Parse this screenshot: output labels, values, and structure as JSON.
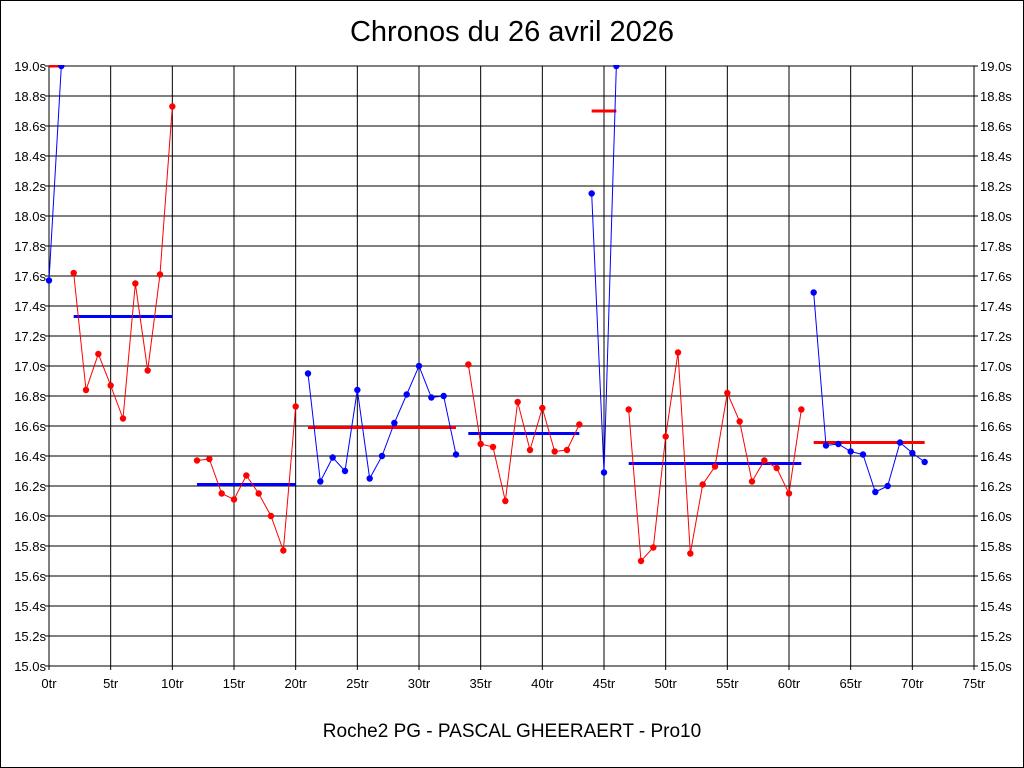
{
  "chart_data": {
    "type": "line",
    "title": "Chronos du 26 avril 2026",
    "caption": "Roche2 PG - PASCAL GHEERAERT - Pro10",
    "xlim": [
      0,
      75
    ],
    "ylim": [
      15.0,
      19.0
    ],
    "x_ticks": [
      0,
      5,
      10,
      15,
      20,
      25,
      30,
      35,
      40,
      45,
      50,
      55,
      60,
      65,
      70,
      75
    ],
    "x_tick_labels": [
      "0tr",
      "5tr",
      "10tr",
      "15tr",
      "20tr",
      "25tr",
      "30tr",
      "35tr",
      "40tr",
      "45tr",
      "50tr",
      "55tr",
      "60tr",
      "65tr",
      "70tr",
      "75tr"
    ],
    "y_ticks": [
      15.0,
      15.2,
      15.4,
      15.6,
      15.8,
      16.0,
      16.2,
      16.4,
      16.6,
      16.8,
      17.0,
      17.2,
      17.4,
      17.6,
      17.8,
      18.0,
      18.2,
      18.4,
      18.6,
      18.8,
      19.0
    ],
    "y_tick_labels": [
      "15.0s",
      "15.2s",
      "15.4s",
      "15.6s",
      "15.8s",
      "16.0s",
      "16.2s",
      "16.4s",
      "16.6s",
      "16.8s",
      "17.0s",
      "17.2s",
      "17.4s",
      "17.6s",
      "17.8s",
      "18.0s",
      "18.2s",
      "18.4s",
      "18.6s",
      "18.8s",
      "19.0s"
    ],
    "grid": true,
    "series": [
      {
        "color": "#0000ff",
        "points": [
          [
            0,
            17.57
          ],
          [
            1,
            19.0
          ]
        ]
      },
      {
        "color": "#ff0000",
        "points": [
          [
            2,
            17.62
          ],
          [
            3,
            16.84
          ],
          [
            4,
            17.08
          ],
          [
            5,
            16.87
          ],
          [
            6,
            16.65
          ],
          [
            7,
            17.55
          ],
          [
            8,
            16.97
          ],
          [
            9,
            17.61
          ],
          [
            10,
            18.73
          ]
        ]
      },
      {
        "color": "#ff0000",
        "points": [
          [
            12,
            16.37
          ],
          [
            13,
            16.38
          ],
          [
            14,
            16.15
          ],
          [
            15,
            16.11
          ],
          [
            16,
            16.27
          ],
          [
            17,
            16.15
          ],
          [
            18,
            16.0
          ],
          [
            19,
            15.77
          ],
          [
            20,
            16.73
          ]
        ]
      },
      {
        "color": "#0000ff",
        "points": [
          [
            21,
            16.95
          ],
          [
            22,
            16.23
          ],
          [
            23,
            16.39
          ],
          [
            24,
            16.3
          ],
          [
            25,
            16.84
          ],
          [
            26,
            16.25
          ],
          [
            27,
            16.4
          ],
          [
            28,
            16.62
          ],
          [
            29,
            16.81
          ],
          [
            30,
            17.0
          ],
          [
            31,
            16.79
          ],
          [
            32,
            16.8
          ],
          [
            33,
            16.41
          ]
        ]
      },
      {
        "color": "#ff0000",
        "points": [
          [
            34,
            17.01
          ],
          [
            35,
            16.48
          ],
          [
            36,
            16.46
          ],
          [
            37,
            16.1
          ],
          [
            38,
            16.76
          ],
          [
            39,
            16.44
          ],
          [
            40,
            16.72
          ],
          [
            41,
            16.43
          ],
          [
            42,
            16.44
          ],
          [
            43,
            16.61
          ]
        ]
      },
      {
        "color": "#0000ff",
        "points": [
          [
            44,
            18.15
          ],
          [
            45,
            16.29
          ],
          [
            46,
            19.0
          ]
        ]
      },
      {
        "color": "#ff0000",
        "points": [
          [
            47,
            16.71
          ],
          [
            48,
            15.7
          ],
          [
            49,
            15.79
          ],
          [
            50,
            16.53
          ],
          [
            51,
            17.09
          ],
          [
            52,
            15.75
          ],
          [
            53,
            16.21
          ],
          [
            54,
            16.33
          ],
          [
            55,
            16.82
          ],
          [
            56,
            16.63
          ],
          [
            57,
            16.23
          ],
          [
            58,
            16.37
          ],
          [
            59,
            16.32
          ],
          [
            60,
            16.15
          ],
          [
            61,
            16.71
          ]
        ]
      },
      {
        "color": "#0000ff",
        "points": [
          [
            62,
            17.49
          ],
          [
            63,
            16.47
          ],
          [
            64,
            16.48
          ],
          [
            65,
            16.43
          ],
          [
            66,
            16.41
          ],
          [
            67,
            16.16
          ],
          [
            68,
            16.2
          ],
          [
            69,
            16.49
          ],
          [
            70,
            16.42
          ],
          [
            71,
            16.36
          ]
        ]
      }
    ],
    "averages": [
      {
        "color": "#ff0000",
        "x": [
          0,
          1
        ],
        "y": 19.0
      },
      {
        "color": "#0000ff",
        "x": [
          2,
          10
        ],
        "y": 17.33
      },
      {
        "color": "#0000ff",
        "x": [
          12,
          20
        ],
        "y": 16.21
      },
      {
        "color": "#ff0000",
        "x": [
          21,
          33
        ],
        "y": 16.59
      },
      {
        "color": "#0000ff",
        "x": [
          34,
          43
        ],
        "y": 16.55
      },
      {
        "color": "#ff0000",
        "x": [
          44,
          46
        ],
        "y": 18.7
      },
      {
        "color": "#0000ff",
        "x": [
          47,
          61
        ],
        "y": 16.35
      },
      {
        "color": "#ff0000",
        "x": [
          62,
          71
        ],
        "y": 16.49
      }
    ]
  }
}
